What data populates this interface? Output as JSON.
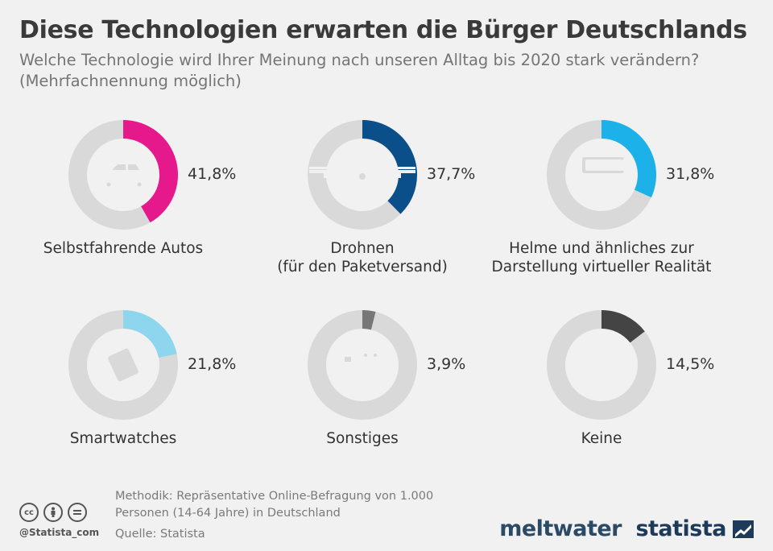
{
  "title": "Diese Technologien erwarten die Bürger Deutschlands",
  "subtitle": "Welche Technologie wird Ihrer Meinung nach unseren Alltag bis 2020 stark verändern? (Mehrfachnennung möglich)",
  "chart_data": [
    {
      "type": "pie",
      "variant": "donut",
      "label_lines": [
        "Selbstfahrende Autos"
      ],
      "value": 41.8,
      "value_label": "41,8%",
      "color": "#e6198c",
      "icon": "car-icon"
    },
    {
      "type": "pie",
      "variant": "donut",
      "label_lines": [
        "Drohnen",
        "(für den Paketversand)"
      ],
      "value": 37.7,
      "value_label": "37,7%",
      "color": "#0a4f8a",
      "icon": "drone-icon"
    },
    {
      "type": "pie",
      "variant": "donut",
      "label_lines": [
        "Helme und ähnliches zur",
        "Darstellung virtueller Realität"
      ],
      "value": 31.8,
      "value_label": "31,8%",
      "color": "#1cb1e8",
      "icon": "vr-headset-icon"
    },
    {
      "type": "pie",
      "variant": "donut",
      "label_lines": [
        "Smartwatches"
      ],
      "value": 21.8,
      "value_label": "21,8%",
      "color": "#8ed6ee",
      "icon": "smartwatch-icon"
    },
    {
      "type": "pie",
      "variant": "donut",
      "label_lines": [
        "Sonstiges"
      ],
      "value": 3.9,
      "value_label": "3,9%",
      "color": "#777777",
      "icon": "gadgets-icon"
    },
    {
      "type": "pie",
      "variant": "donut",
      "label_lines": [
        "Keine"
      ],
      "value": 14.5,
      "value_label": "14,5%",
      "color": "#444444",
      "icon": ""
    }
  ],
  "colors": {
    "track": "#d9d9d9",
    "icon": "#f1f1f1"
  },
  "footer": {
    "method_lines": [
      "Methodik: Repräsentative Online-Befragung von 1.000",
      "Personen (14-64 Jahre) in Deutschland"
    ],
    "source": "Quelle: Statista",
    "handle": "@Statista_com",
    "brand_1": "meltwater",
    "brand_2": "statista"
  }
}
